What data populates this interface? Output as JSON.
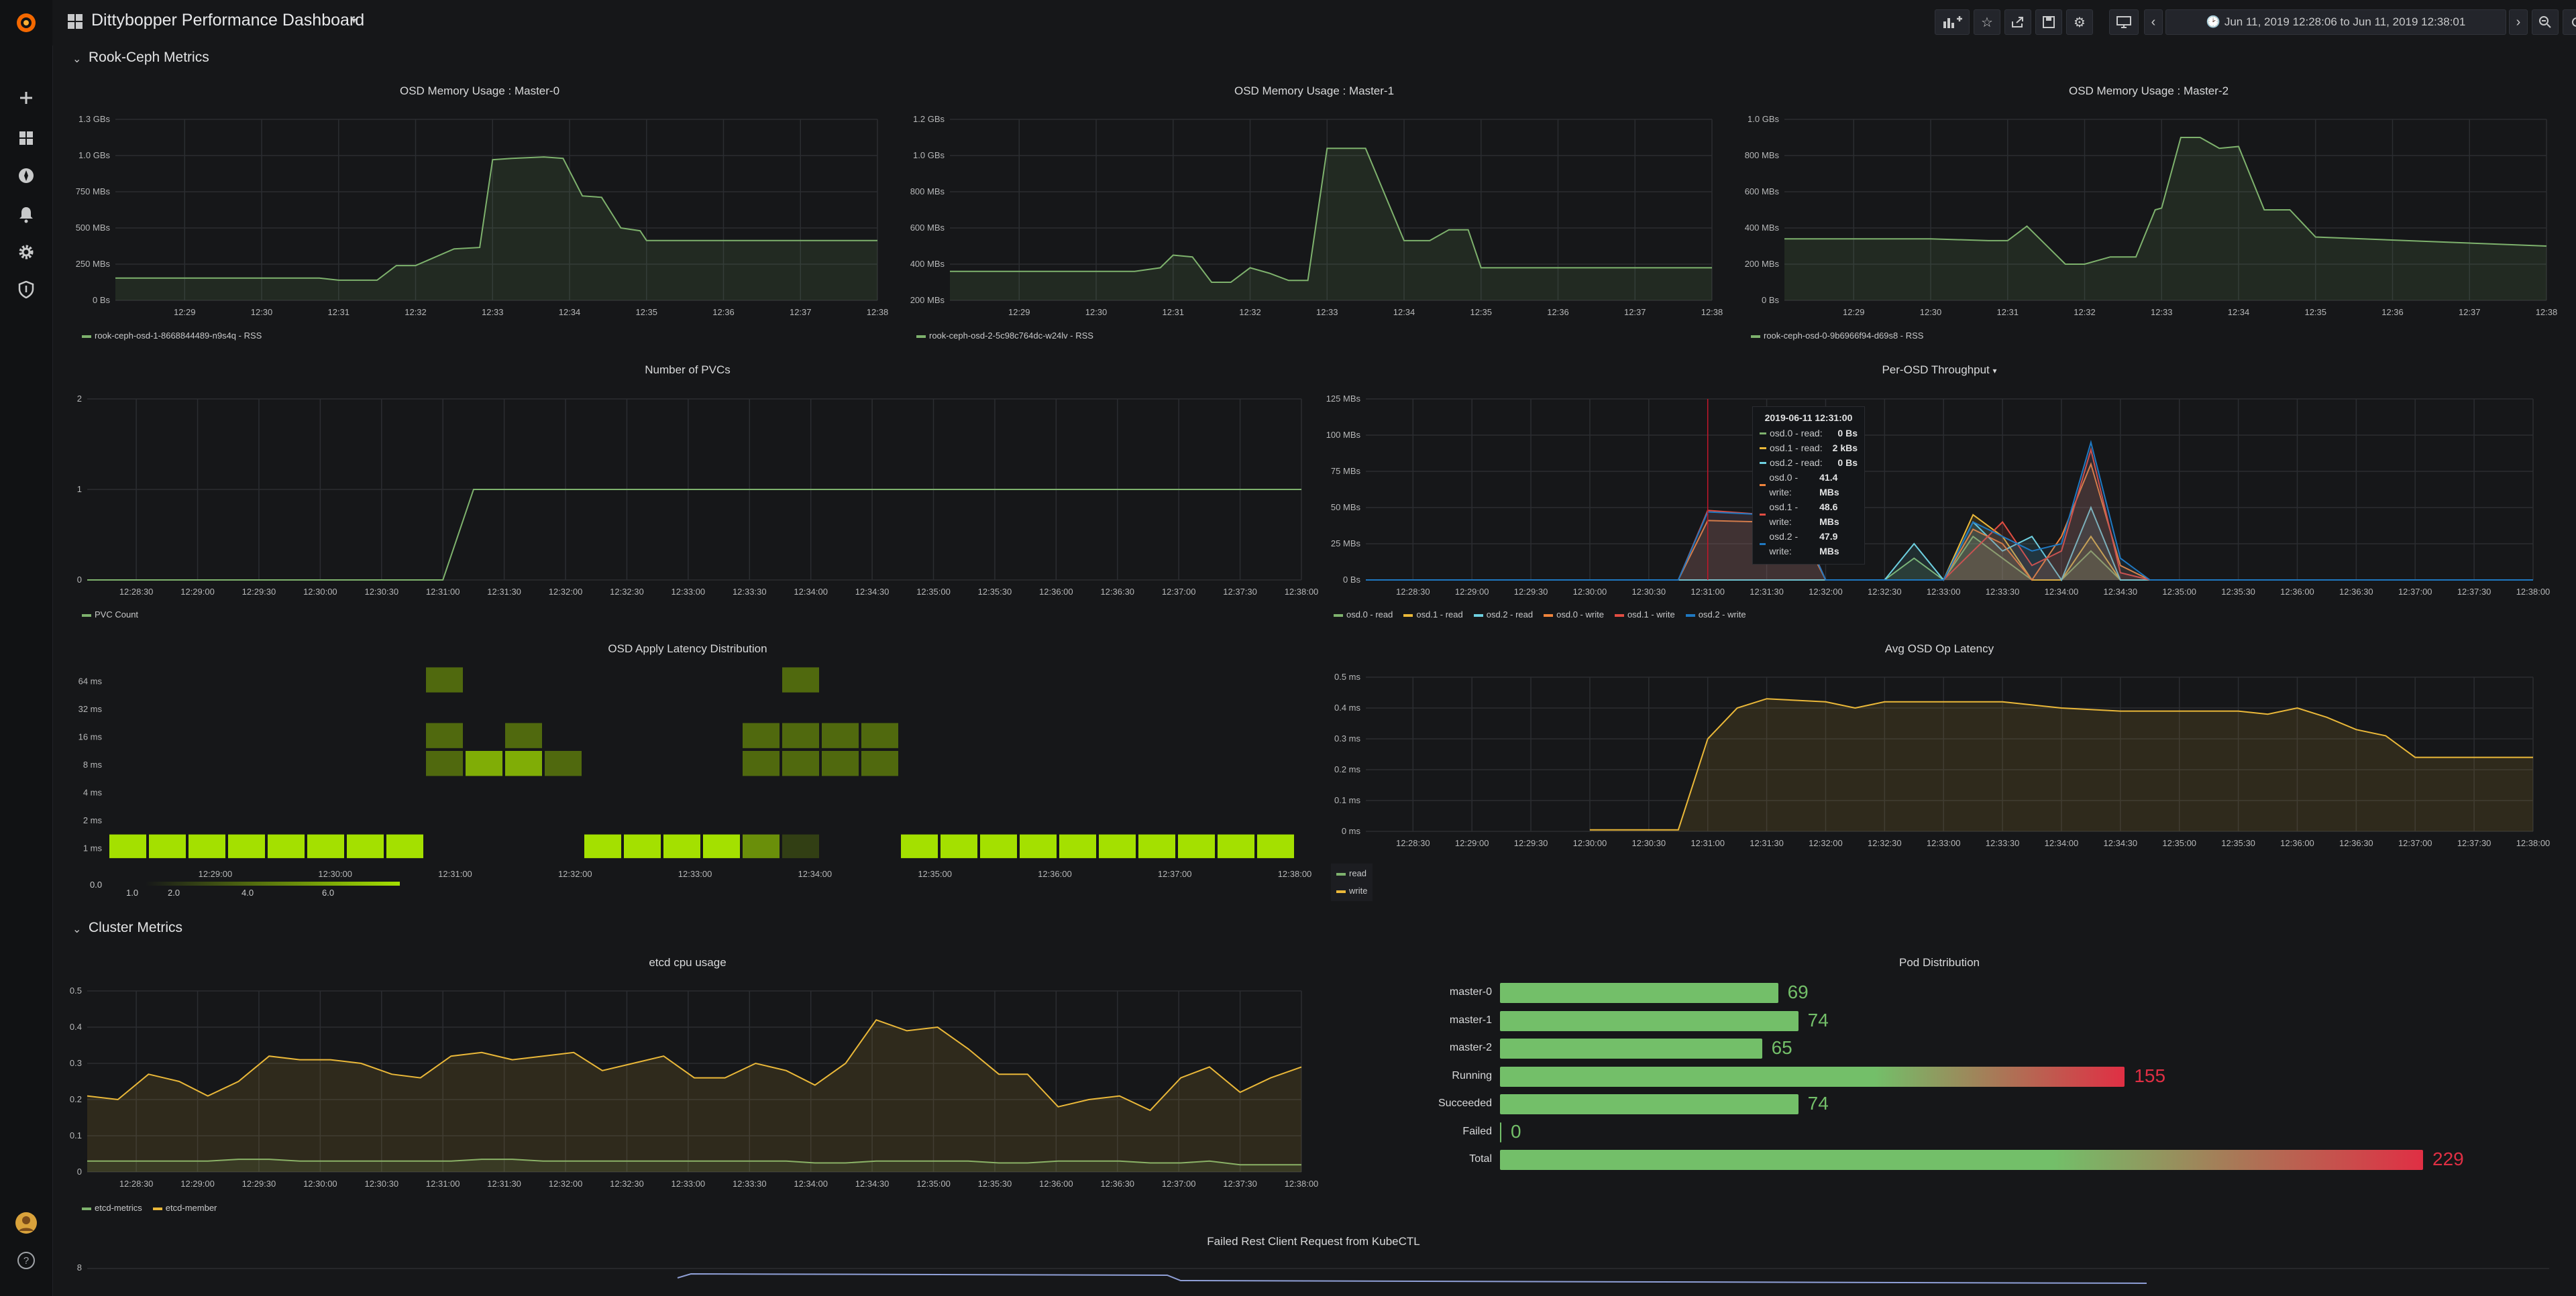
{
  "topbar": {
    "title": "Dittybopper Performance Dashboard",
    "time_range": "Jun 11, 2019 12:28:06 to Jun 11, 2019 12:38:01"
  },
  "sidebar": {
    "icons": [
      "grafana-logo-icon",
      "plus-icon",
      "dashboards-icon",
      "explore-icon",
      "alerting-bell-icon",
      "configuration-gear-icon",
      "server-admin-shield-icon",
      "user-avatar",
      "help-icon"
    ]
  },
  "rows": {
    "rook": "Rook-Ceph Metrics",
    "cluster": "Cluster Metrics"
  },
  "panels": {
    "mem0": {
      "title": "OSD Memory Usage : Master-0",
      "legend": "rook-ceph-osd-1-8668844489-n9s4q - RSS"
    },
    "mem1": {
      "title": "OSD Memory Usage : Master-1",
      "legend": "rook-ceph-osd-2-5c98c764dc-w24lv - RSS"
    },
    "mem2": {
      "title": "OSD Memory Usage : Master-2",
      "legend": "rook-ceph-osd-0-9b6966f94-d69s8 - RSS"
    },
    "pvc": {
      "title": "Number of PVCs",
      "legend": "PVC Count"
    },
    "throughput": {
      "title": "Per-OSD Throughput"
    },
    "heatmap": {
      "title": "OSD Apply Latency Distribution"
    },
    "avg": {
      "title": "Avg OSD Op Latency"
    },
    "etcd": {
      "title": "etcd cpu usage"
    },
    "pods": {
      "title": "Pod Distribution"
    },
    "failed": {
      "title": "Failed Rest Client Request from KubeCTL"
    }
  },
  "tooltip": {
    "time": "2019-06-11 12:31:00",
    "rows": [
      {
        "name": "osd.0 - read:",
        "value": "0 Bs",
        "color": "#7eb26d"
      },
      {
        "name": "osd.1 - read:",
        "value": "2 kBs",
        "color": "#eab839"
      },
      {
        "name": "osd.2 - read:",
        "value": "0 Bs",
        "color": "#6ed0e0"
      },
      {
        "name": "osd.0 - write:",
        "value": "41.4 MBs",
        "color": "#ef843c"
      },
      {
        "name": "osd.1 - write:",
        "value": "48.6 MBs",
        "color": "#e24d42"
      },
      {
        "name": "osd.2 - write:",
        "value": "47.9 MBs",
        "color": "#1f78c1"
      }
    ]
  },
  "heatmap_legend": [
    "0.0",
    "1.0",
    "2.0",
    "4.0",
    "6.0"
  ],
  "colors": {
    "green": "#7eb26d",
    "yellow": "#eab839",
    "heat": "#a4e000",
    "bargauge_red": "#e02f44",
    "bargauge_green": "#73bf69"
  },
  "chart_data": [
    {
      "id": "mem0",
      "type": "area",
      "x": [
        "12:28:06",
        "12:28:30",
        "12:29",
        "12:29:30",
        "12:30",
        "12:30:30",
        "12:30:45",
        "12:31",
        "12:31:15",
        "12:31:30",
        "12:31:45",
        "12:32",
        "12:32:30",
        "12:32:50",
        "12:33",
        "12:33:15",
        "12:33:40",
        "12:33:55",
        "12:34:10",
        "12:34:25",
        "12:34:40",
        "12:34:55",
        "12:35",
        "12:38"
      ],
      "values": [
        160,
        160,
        160,
        160,
        160,
        160,
        160,
        145,
        145,
        145,
        250,
        250,
        370,
        380,
        1010,
        1020,
        1030,
        1020,
        750,
        740,
        520,
        500,
        430,
        430
      ],
      "ylim": [
        0,
        1300
      ],
      "yticks": [
        "0 Bs",
        "250 MBs",
        "500 MBs",
        "750 MBs",
        "1.0 GBs",
        "1.3 GBs"
      ],
      "xticks": [
        "12:29",
        "12:30",
        "12:31",
        "12:32",
        "12:33",
        "12:34",
        "12:35",
        "12:36",
        "12:37",
        "12:38"
      ],
      "series": [
        {
          "name": "rook-ceph-osd-1-8668844489-n9s4q - RSS",
          "color": "#7eb26d"
        }
      ]
    },
    {
      "id": "mem1",
      "type": "area",
      "x": [
        "12:28:06",
        "12:29",
        "12:30",
        "12:30:30",
        "12:30:50",
        "12:31",
        "12:31:15",
        "12:31:30",
        "12:31:45",
        "12:32",
        "12:32:15",
        "12:32:30",
        "12:32:45",
        "12:33",
        "12:33:15",
        "12:33:30",
        "12:34",
        "12:34:20",
        "12:34:35",
        "12:34:50",
        "12:35",
        "12:38"
      ],
      "values": [
        360,
        360,
        360,
        360,
        380,
        450,
        440,
        300,
        300,
        380,
        350,
        310,
        310,
        1040,
        1040,
        1040,
        530,
        530,
        590,
        590,
        380,
        380
      ],
      "ylim": [
        200,
        1200
      ],
      "yticks": [
        "200 MBs",
        "400 MBs",
        "600 MBs",
        "800 MBs",
        "1.0 GBs",
        "1.2 GBs"
      ],
      "xticks": [
        "12:29",
        "12:30",
        "12:31",
        "12:32",
        "12:33",
        "12:34",
        "12:35",
        "12:36",
        "12:37",
        "12:38"
      ],
      "series": [
        {
          "name": "rook-ceph-osd-2-5c98c764dc-w24lv - RSS",
          "color": "#7eb26d"
        }
      ]
    },
    {
      "id": "mem2",
      "type": "area",
      "x": [
        "12:28:06",
        "12:29",
        "12:30",
        "12:30:45",
        "12:31",
        "12:31:15",
        "12:31:45",
        "12:32",
        "12:32:20",
        "12:32:40",
        "12:32:55",
        "12:33",
        "12:33:15",
        "12:33:30",
        "12:33:45",
        "12:34",
        "12:34:20",
        "12:34:40",
        "12:35",
        "12:38"
      ],
      "values": [
        340,
        340,
        340,
        330,
        330,
        410,
        200,
        200,
        240,
        240,
        500,
        510,
        900,
        900,
        840,
        850,
        500,
        500,
        350,
        300
      ],
      "ylim": [
        0,
        1000
      ],
      "yticks": [
        "0 Bs",
        "200 MBs",
        "400 MBs",
        "600 MBs",
        "800 MBs",
        "1.0 GBs"
      ],
      "xticks": [
        "12:29",
        "12:30",
        "12:31",
        "12:32",
        "12:33",
        "12:34",
        "12:35",
        "12:36",
        "12:37",
        "12:38"
      ],
      "series": [
        {
          "name": "rook-ceph-osd-0-9b6966f94-d69s8 - RSS",
          "color": "#7eb26d"
        }
      ]
    },
    {
      "id": "pvc",
      "type": "line",
      "x": [
        "12:28:06",
        "12:31:00",
        "12:31:15",
        "12:38:00"
      ],
      "values": [
        0,
        0,
        1,
        1
      ],
      "ylim": [
        0,
        2
      ],
      "yticks": [
        "0",
        "1",
        "2"
      ],
      "xticks": [
        "12:28:30",
        "12:29:00",
        "12:29:30",
        "12:30:00",
        "12:30:30",
        "12:31:00",
        "12:31:30",
        "12:32:00",
        "12:32:30",
        "12:33:00",
        "12:33:30",
        "12:34:00",
        "12:34:30",
        "12:35:00",
        "12:35:30",
        "12:36:00",
        "12:36:30",
        "12:37:00",
        "12:37:30",
        "12:38:00"
      ],
      "series": [
        {
          "name": "PVC Count",
          "color": "#7eb26d"
        }
      ]
    },
    {
      "id": "throughput",
      "type": "area",
      "ylim": [
        0,
        125
      ],
      "yticks": [
        "0 Bs",
        "25 MBs",
        "50 MBs",
        "75 MBs",
        "100 MBs",
        "125 MBs"
      ],
      "xticks": [
        "12:28:30",
        "12:29:00",
        "12:29:30",
        "12:30:00",
        "12:30:30",
        "12:31:00",
        "12:31:30",
        "12:32:00",
        "12:32:30",
        "12:33:00",
        "12:33:30",
        "12:34:00",
        "12:34:30",
        "12:35:00",
        "12:35:30",
        "12:36:00",
        "12:36:30",
        "12:37:00",
        "12:37:30",
        "12:38:00"
      ],
      "x": [
        "12:28:06",
        "12:30:45",
        "12:31:00",
        "12:31:30",
        "12:31:45",
        "12:32:00",
        "12:32:15",
        "12:32:30",
        "12:32:45",
        "12:33:00",
        "12:33:15",
        "12:33:30",
        "12:33:45",
        "12:34:00",
        "12:34:15",
        "12:34:30",
        "12:34:45",
        "12:35:00",
        "12:38:00"
      ],
      "series": [
        {
          "name": "osd.0 - read",
          "color": "#7eb26d",
          "values": [
            0,
            0,
            0,
            0,
            0,
            0,
            0,
            0,
            15,
            0,
            30,
            15,
            0,
            0,
            20,
            0,
            0,
            0,
            0
          ]
        },
        {
          "name": "osd.1 - read",
          "color": "#eab839",
          "values": [
            0,
            0,
            0,
            0,
            0,
            0,
            0,
            0,
            0,
            0,
            45,
            30,
            0,
            0,
            30,
            0,
            0,
            0,
            0
          ]
        },
        {
          "name": "osd.2 - read",
          "color": "#6ed0e0",
          "values": [
            0,
            0,
            0,
            0,
            0,
            0,
            0,
            0,
            25,
            0,
            40,
            20,
            30,
            0,
            50,
            0,
            0,
            0,
            0
          ]
        },
        {
          "name": "osd.0 - write",
          "color": "#ef843c",
          "values": [
            0,
            0,
            41,
            40,
            40,
            0,
            0,
            0,
            0,
            0,
            35,
            25,
            0,
            30,
            80,
            10,
            0,
            0,
            0
          ]
        },
        {
          "name": "osd.1 - write",
          "color": "#e24d42",
          "values": [
            0,
            0,
            48,
            45,
            46,
            0,
            0,
            0,
            0,
            0,
            20,
            40,
            10,
            20,
            90,
            5,
            0,
            0,
            0
          ]
        },
        {
          "name": "osd.2 - write",
          "color": "#1f78c1",
          "values": [
            0,
            0,
            47,
            45,
            45,
            0,
            0,
            0,
            0,
            0,
            40,
            30,
            20,
            25,
            95,
            15,
            0,
            0,
            0
          ]
        }
      ]
    },
    {
      "id": "heatmap",
      "type": "heatmap",
      "ylabels": [
        "1 ms",
        "2 ms",
        "4 ms",
        "8 ms",
        "16 ms",
        "32 ms",
        "64 ms"
      ],
      "xticks": [
        "12:29:00",
        "12:30:00",
        "12:31:00",
        "12:32:00",
        "12:33:00",
        "12:34:00",
        "12:35:00",
        "12:36:00",
        "12:37:00",
        "12:38:00"
      ]
    },
    {
      "id": "avg",
      "type": "area",
      "x": [
        "12:30:00",
        "12:30:45",
        "12:31:00",
        "12:31:15",
        "12:31:30",
        "12:32:00",
        "12:32:15",
        "12:32:30",
        "12:33:00",
        "12:33:30",
        "12:33:45",
        "12:34:00",
        "12:34:30",
        "12:35:00",
        "12:35:30",
        "12:35:45",
        "12:36:00",
        "12:36:15",
        "12:36:30",
        "12:36:45",
        "12:37:00",
        "12:38:00"
      ],
      "values": [
        0.005,
        0.005,
        0.3,
        0.4,
        0.43,
        0.42,
        0.4,
        0.42,
        0.42,
        0.42,
        0.41,
        0.4,
        0.39,
        0.39,
        0.39,
        0.38,
        0.4,
        0.37,
        0.33,
        0.31,
        0.24,
        0.24
      ],
      "ylim": [
        0,
        0.5
      ],
      "yticks": [
        "0 ms",
        "0.1 ms",
        "0.2 ms",
        "0.3 ms",
        "0.4 ms",
        "0.5 ms"
      ],
      "xticks": [
        "12:28:30",
        "12:29:00",
        "12:29:30",
        "12:30:00",
        "12:30:30",
        "12:31:00",
        "12:31:30",
        "12:32:00",
        "12:32:30",
        "12:33:00",
        "12:33:30",
        "12:34:00",
        "12:34:30",
        "12:35:00",
        "12:35:30",
        "12:36:00",
        "12:36:30",
        "12:37:00",
        "12:37:30",
        "12:38:00"
      ],
      "series": [
        {
          "name": "read",
          "color": "#7eb26d"
        },
        {
          "name": "write",
          "color": "#eab839"
        }
      ]
    },
    {
      "id": "etcd",
      "type": "area",
      "ylim": [
        0,
        0.5
      ],
      "yticks": [
        "0",
        "0.1",
        "0.2",
        "0.3",
        "0.4",
        "0.5"
      ],
      "xticks": [
        "12:28:30",
        "12:29:00",
        "12:29:30",
        "12:30:00",
        "12:30:30",
        "12:31:00",
        "12:31:30",
        "12:32:00",
        "12:32:30",
        "12:33:00",
        "12:33:30",
        "12:34:00",
        "12:34:30",
        "12:35:00",
        "12:35:30",
        "12:36:00",
        "12:36:30",
        "12:37:00",
        "12:37:30",
        "12:38:00"
      ],
      "series": [
        {
          "name": "etcd-metrics",
          "color": "#7eb26d",
          "values": [
            0.03,
            0.03,
            0.03,
            0.03,
            0.03,
            0.035,
            0.035,
            0.03,
            0.03,
            0.03,
            0.03,
            0.03,
            0.03,
            0.035,
            0.035,
            0.03,
            0.03,
            0.03,
            0.03,
            0.03,
            0.03,
            0.03,
            0.03,
            0.03,
            0.025,
            0.025,
            0.03,
            0.03,
            0.03,
            0.03,
            0.025,
            0.025,
            0.03,
            0.03,
            0.03,
            0.025,
            0.025,
            0.03,
            0.02,
            0.02,
            0.02
          ]
        },
        {
          "name": "etcd-member",
          "color": "#eab839",
          "values": [
            0.21,
            0.2,
            0.27,
            0.25,
            0.21,
            0.25,
            0.32,
            0.31,
            0.31,
            0.3,
            0.27,
            0.26,
            0.32,
            0.33,
            0.31,
            0.32,
            0.33,
            0.28,
            0.3,
            0.32,
            0.26,
            0.26,
            0.3,
            0.28,
            0.24,
            0.3,
            0.42,
            0.39,
            0.4,
            0.34,
            0.27,
            0.27,
            0.18,
            0.2,
            0.21,
            0.17,
            0.26,
            0.29,
            0.22,
            0.26,
            0.29
          ]
        }
      ]
    },
    {
      "id": "pods",
      "type": "bar",
      "categories": [
        "master-0",
        "master-1",
        "master-2",
        "Running",
        "Succeeded",
        "Failed",
        "Total"
      ],
      "values": [
        69,
        74,
        65,
        155,
        74,
        0,
        229
      ],
      "max": 229
    },
    {
      "id": "failed",
      "type": "line",
      "yticks": [
        "8"
      ]
    }
  ]
}
